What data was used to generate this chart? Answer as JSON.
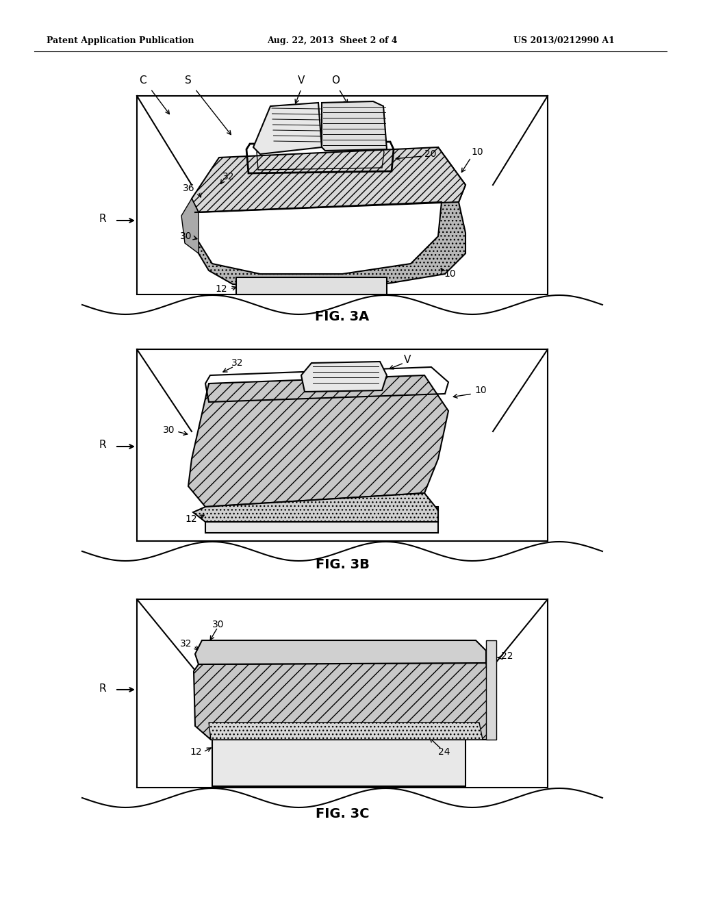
{
  "bg_color": "#ffffff",
  "header_left": "Patent Application Publication",
  "header_center": "Aug. 22, 2013  Sheet 2 of 4",
  "header_right": "US 2013/0212990 A1",
  "fig3a_caption": "FIG. 3A",
  "fig3b_caption": "FIG. 3B",
  "fig3c_caption": "FIG. 3C",
  "lc": "#000000",
  "fill_white": "#ffffff",
  "fill_light": "#e0e0e0",
  "fill_medium": "#c0c0c0",
  "fill_dark": "#909090",
  "fill_verydark": "#606060"
}
